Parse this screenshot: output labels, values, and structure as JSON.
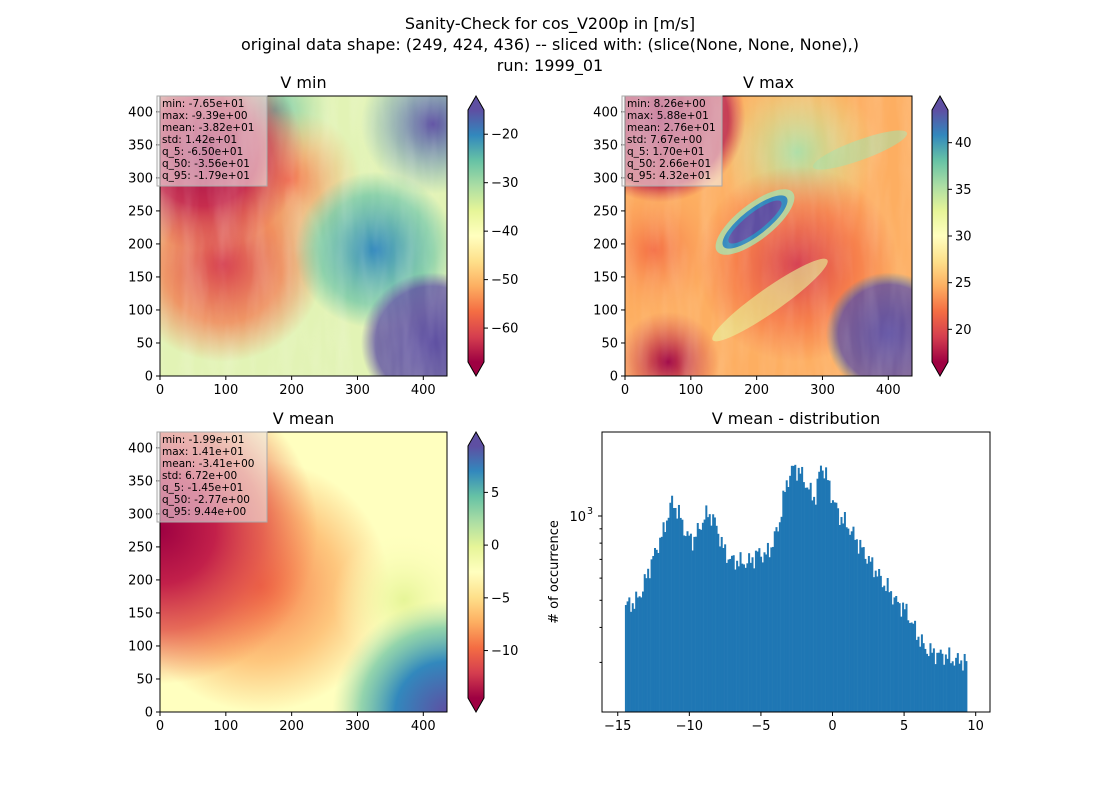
{
  "figure": {
    "title_lines": [
      "Sanity-Check for cos_V200p in [m/s]",
      "original data shape: (249, 424, 436) -- sliced with: (slice(None, None, None),)",
      "run: 1999_01"
    ]
  },
  "chart_data": [
    {
      "type": "heatmap",
      "title": "V min",
      "colormap": "Spectral",
      "xlim": [
        0,
        436
      ],
      "ylim": [
        0,
        424
      ],
      "xticks": [
        "0",
        "100",
        "200",
        "300",
        "400"
      ],
      "yticks": [
        "0",
        "50",
        "100",
        "150",
        "200",
        "250",
        "300",
        "350",
        "400"
      ],
      "colorbar": {
        "vmin": -67,
        "vmax": -15,
        "ticks": [
          "−60",
          "−50",
          "−40",
          "−30",
          "−20"
        ],
        "tick_values": [
          -60,
          -50,
          -40,
          -30,
          -20
        ]
      },
      "stats": [
        "min: -7.65e+01",
        "max: -9.39e+00",
        "mean: -3.82e+01",
        "std: 1.42e+01",
        "q_5: -6.50e+01",
        "q_50: -3.56e+01",
        "q_95: -1.79e+01"
      ]
    },
    {
      "type": "heatmap",
      "title": "V max",
      "colormap": "Spectral",
      "xlim": [
        0,
        436
      ],
      "ylim": [
        0,
        424
      ],
      "xticks": [
        "0",
        "100",
        "200",
        "300",
        "400"
      ],
      "yticks": [
        "0",
        "50",
        "100",
        "150",
        "200",
        "250",
        "300",
        "350",
        "400"
      ],
      "colorbar": {
        "vmin": 16.5,
        "vmax": 43.5,
        "ticks": [
          "20",
          "25",
          "30",
          "35",
          "40"
        ],
        "tick_values": [
          20,
          25,
          30,
          35,
          40
        ]
      },
      "stats": [
        "min: 8.26e+00",
        "max: 5.88e+01",
        "mean: 2.76e+01",
        "std: 7.67e+00",
        "q_5: 1.70e+01",
        "q_50: 2.66e+01",
        "q_95: 4.32e+01"
      ]
    },
    {
      "type": "heatmap",
      "title": "V mean",
      "colormap": "Spectral",
      "xlim": [
        0,
        436
      ],
      "ylim": [
        0,
        424
      ],
      "xticks": [
        "0",
        "100",
        "200",
        "300",
        "400"
      ],
      "yticks": [
        "0",
        "50",
        "100",
        "150",
        "200",
        "250",
        "300",
        "350",
        "400"
      ],
      "colorbar": {
        "vmin": -14.5,
        "vmax": 9.4,
        "ticks": [
          "−10",
          "−5",
          "0",
          "5"
        ],
        "tick_values": [
          -10,
          -5,
          0,
          5
        ]
      },
      "stats": [
        "min: -1.99e+01",
        "max: 1.41e+01",
        "mean: -3.41e+00",
        "std: 6.72e+00",
        "q_5: -1.45e+01",
        "q_50: -2.77e+00",
        "q_95: 9.44e+00"
      ]
    },
    {
      "type": "bar",
      "title": "V mean - distribution",
      "ylabel": "# of occurrence",
      "yscale": "log",
      "xlim": [
        -16.1,
        11.0
      ],
      "ylim_log10": [
        2.3,
        3.3
      ],
      "xticks": [
        "−15",
        "−10",
        "−5",
        "0",
        "5",
        "10"
      ],
      "xtick_values": [
        -15,
        -10,
        -5,
        0,
        5,
        10
      ],
      "ytick_label_base": "10",
      "ytick_label_exp": "3",
      "ytick_value": 1000,
      "color": "#1f77b4",
      "bin_edges": [
        -14.5,
        9.4
      ],
      "bins": 200,
      "profile": [
        [
          -14.5,
          480
        ],
        [
          -13.8,
          490
        ],
        [
          -13.3,
          540
        ],
        [
          -12.8,
          650
        ],
        [
          -12.3,
          760
        ],
        [
          -11.8,
          880
        ],
        [
          -11.2,
          1130
        ],
        [
          -10.7,
          1010
        ],
        [
          -10.2,
          850
        ],
        [
          -9.7,
          820
        ],
        [
          -9.2,
          930
        ],
        [
          -8.7,
          1030
        ],
        [
          -8.2,
          950
        ],
        [
          -7.7,
          780
        ],
        [
          -7.2,
          700
        ],
        [
          -6.7,
          690
        ],
        [
          -6.2,
          680
        ],
        [
          -5.7,
          690
        ],
        [
          -5.2,
          740
        ],
        [
          -4.7,
          720
        ],
        [
          -4.2,
          790
        ],
        [
          -3.7,
          950
        ],
        [
          -3.2,
          1320
        ],
        [
          -2.7,
          1500
        ],
        [
          -2.2,
          1420
        ],
        [
          -1.7,
          1250
        ],
        [
          -1.2,
          1150
        ],
        [
          -0.8,
          1530
        ],
        [
          -0.4,
          1380
        ],
        [
          0.0,
          1150
        ],
        [
          0.5,
          1000
        ],
        [
          1.0,
          930
        ],
        [
          1.5,
          850
        ],
        [
          2.0,
          770
        ],
        [
          2.5,
          700
        ],
        [
          3.0,
          640
        ],
        [
          3.5,
          580
        ],
        [
          4.0,
          540
        ],
        [
          4.5,
          490
        ],
        [
          5.0,
          470
        ],
        [
          5.5,
          420
        ],
        [
          6.0,
          370
        ],
        [
          6.5,
          335
        ],
        [
          7.0,
          325
        ],
        [
          7.5,
          320
        ],
        [
          8.0,
          315
        ],
        [
          8.5,
          305
        ],
        [
          9.0,
          305
        ],
        [
          9.4,
          300
        ]
      ]
    }
  ]
}
